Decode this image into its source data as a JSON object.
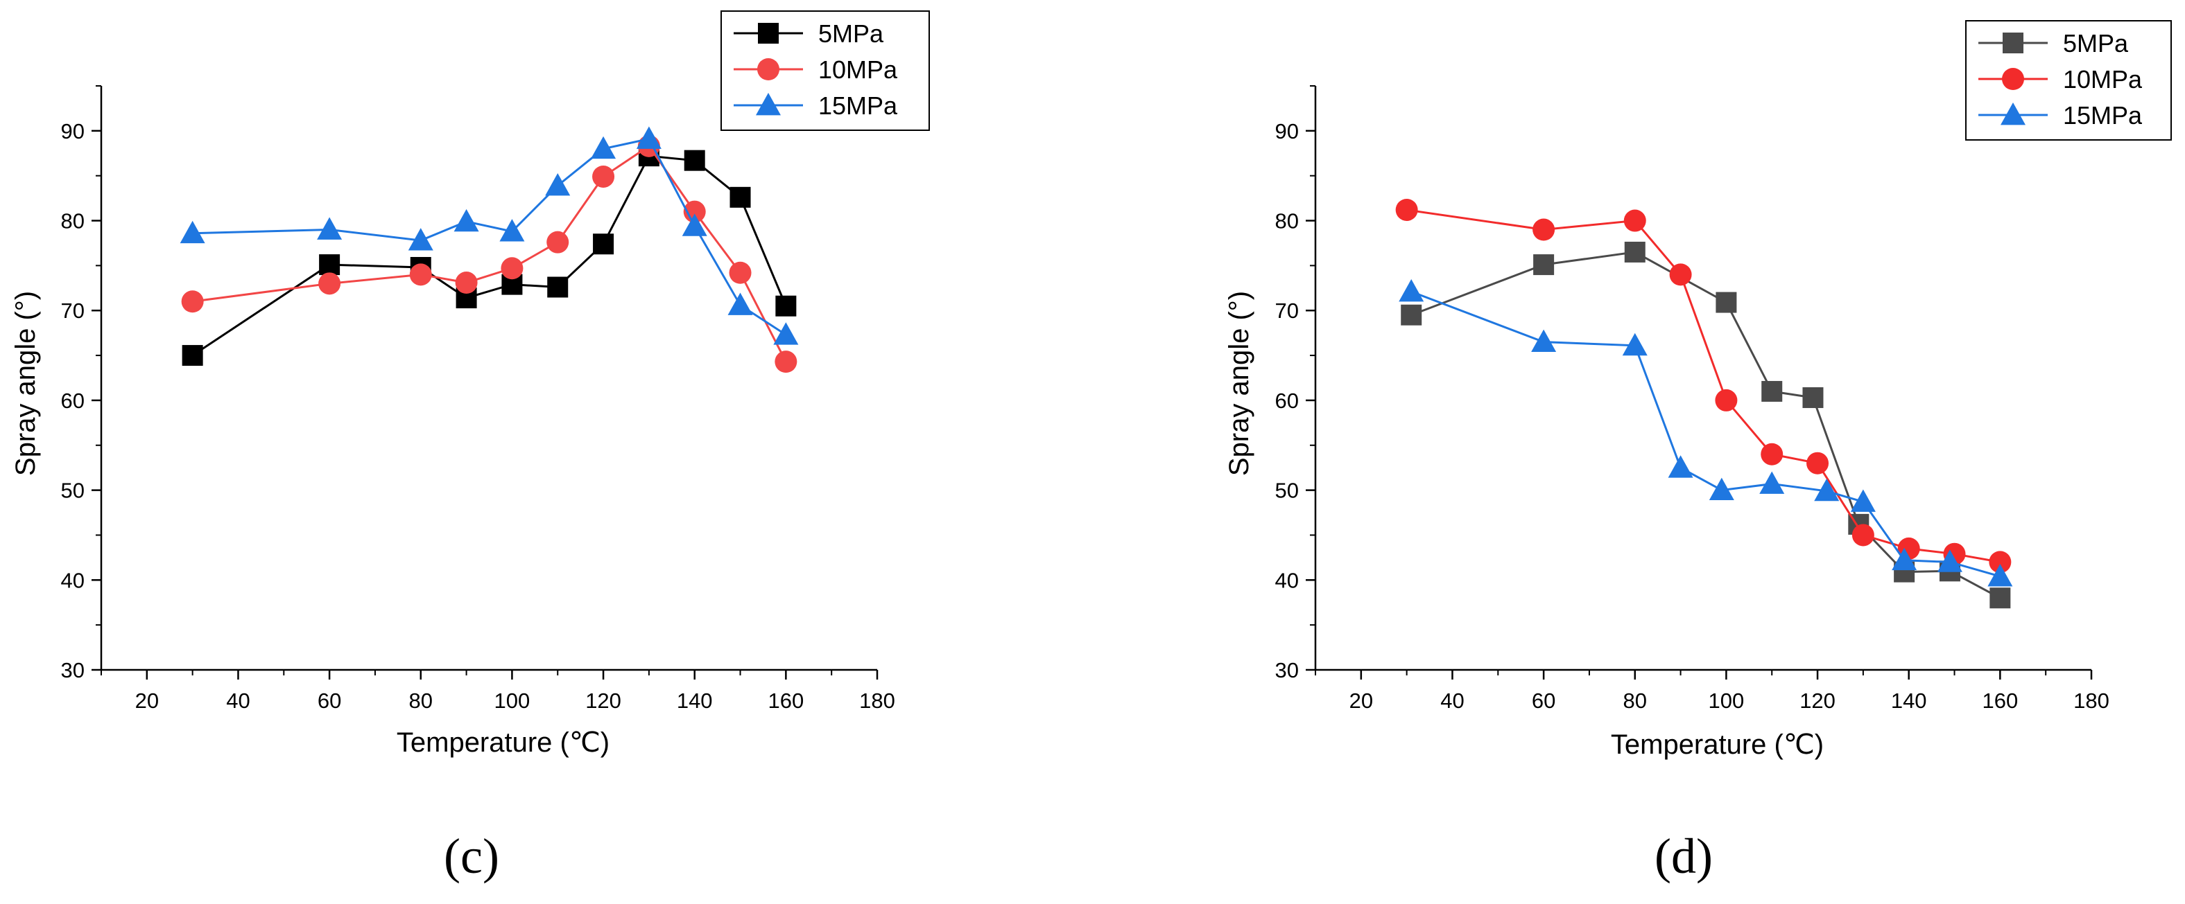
{
  "chart_data": [
    {
      "type": "line",
      "panel_label": "(c)",
      "xlabel": "Temperature (℃)",
      "ylabel": "Spray angle (°)",
      "xlim": [
        10,
        180
      ],
      "ylim": [
        30,
        95
      ],
      "xticks": [
        "20",
        "40",
        "60",
        "80",
        "100",
        "120",
        "140",
        "160",
        "180"
      ],
      "yticks": [
        "30",
        "40",
        "50",
        "60",
        "70",
        "80",
        "90"
      ],
      "legend_position": "top-right",
      "series": [
        {
          "name": "5MPa",
          "marker": "square",
          "color": "#000000",
          "x": [
            30,
            60,
            80,
            90,
            100,
            110,
            120,
            130,
            140,
            150,
            160
          ],
          "y": [
            65.0,
            75.1,
            74.8,
            71.4,
            72.9,
            72.6,
            77.4,
            87.2,
            86.7,
            82.6,
            70.5
          ]
        },
        {
          "name": "10MPa",
          "marker": "circle",
          "color": "#f24646",
          "x": [
            30,
            60,
            80,
            90,
            100,
            110,
            120,
            130,
            140,
            150,
            160
          ],
          "y": [
            71.0,
            73.0,
            74.0,
            73.1,
            74.7,
            77.6,
            84.9,
            88.3,
            81.0,
            74.2,
            64.3
          ]
        },
        {
          "name": "15MPa",
          "marker": "triangle",
          "color": "#1f77e0",
          "x": [
            30,
            60,
            80,
            90,
            100,
            110,
            120,
            130,
            140,
            150,
            160
          ],
          "y": [
            78.6,
            79.0,
            77.8,
            79.9,
            78.8,
            83.9,
            88.0,
            89.1,
            79.4,
            70.6,
            67.3
          ]
        }
      ]
    },
    {
      "type": "line",
      "panel_label": "(d)",
      "xlabel": "Temperature (℃)",
      "ylabel": "Spray angle (°)",
      "xlim": [
        10,
        180
      ],
      "ylim": [
        30,
        95
      ],
      "xticks": [
        "20",
        "40",
        "60",
        "80",
        "100",
        "120",
        "140",
        "160",
        "180"
      ],
      "yticks": [
        "30",
        "40",
        "50",
        "60",
        "70",
        "80",
        "90"
      ],
      "legend_position": "top-right",
      "series": [
        {
          "name": "5MPa",
          "marker": "square",
          "color": "#4a4a4a",
          "x": [
            31,
            60,
            80,
            100,
            110,
            119,
            129,
            139,
            149,
            160
          ],
          "y": [
            69.5,
            75.1,
            76.5,
            70.9,
            61.0,
            60.3,
            46.2,
            40.9,
            41.0,
            38.0
          ]
        },
        {
          "name": "10MPa",
          "marker": "circle",
          "color": "#f22b2b",
          "x": [
            30,
            60,
            80,
            90,
            100,
            110,
            120,
            130,
            140,
            150,
            160
          ],
          "y": [
            81.2,
            79.0,
            80.0,
            74.0,
            60.0,
            54.0,
            53.0,
            45.0,
            43.5,
            42.9,
            42.0
          ]
        },
        {
          "name": "15MPa",
          "marker": "triangle",
          "color": "#1f77e0",
          "x": [
            31,
            60,
            80,
            90,
            99,
            110,
            122,
            130,
            139,
            149,
            160
          ],
          "y": [
            72.1,
            66.5,
            66.1,
            52.5,
            50.0,
            50.7,
            49.9,
            48.7,
            42.2,
            42.0,
            40.4
          ]
        }
      ]
    }
  ]
}
